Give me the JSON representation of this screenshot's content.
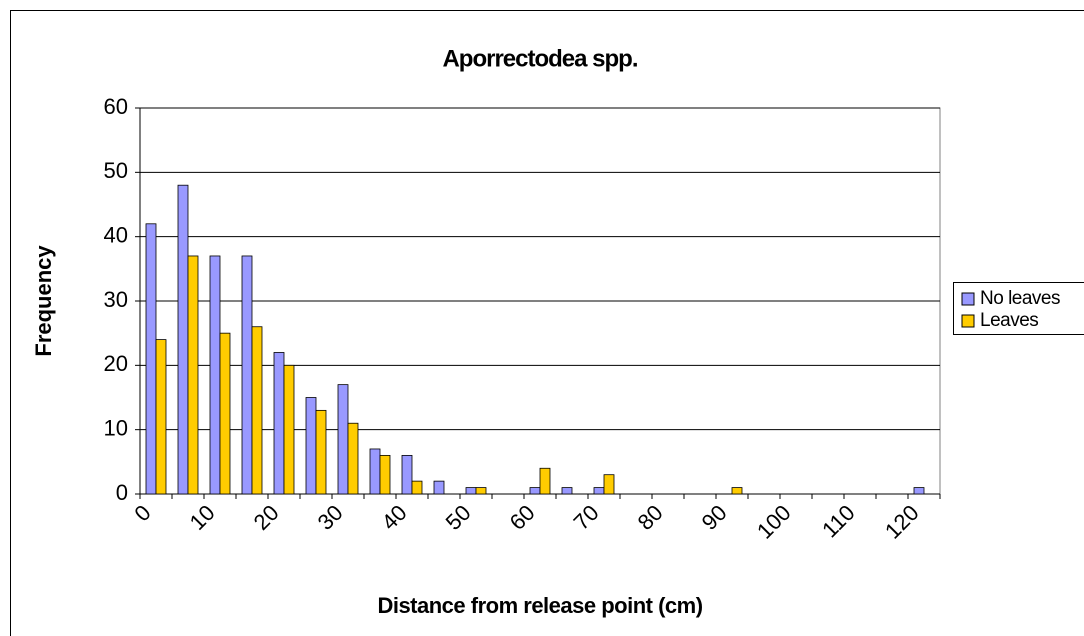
{
  "chart_data": {
    "type": "bar",
    "title": "Aporrectodea spp.",
    "x_label": "Distance from release point (cm)",
    "y_label": "Frequency",
    "categories": [
      0,
      null,
      10,
      null,
      20,
      null,
      30,
      null,
      40,
      null,
      50,
      null,
      60,
      null,
      70,
      null,
      80,
      null,
      90,
      null,
      100,
      null,
      110,
      null,
      120
    ],
    "series": [
      {
        "name": "No leaves",
        "color": "#9999ff",
        "values": [
          42,
          48,
          37,
          37,
          22,
          15,
          17,
          7,
          6,
          2,
          1,
          0,
          1,
          1,
          1,
          0,
          0,
          0,
          0,
          0,
          0,
          0,
          0,
          0,
          1
        ]
      },
      {
        "name": "Leaves",
        "color": "#ffcc00",
        "values": [
          24,
          37,
          25,
          26,
          20,
          13,
          11,
          6,
          2,
          0,
          1,
          0,
          4,
          0,
          3,
          0,
          0,
          0,
          1,
          0,
          0,
          0,
          0,
          0,
          0
        ]
      }
    ],
    "ylim": [
      0,
      60
    ],
    "yticks": [
      0,
      10,
      20,
      30,
      40,
      50,
      60
    ],
    "grid": true,
    "legend": "right"
  }
}
